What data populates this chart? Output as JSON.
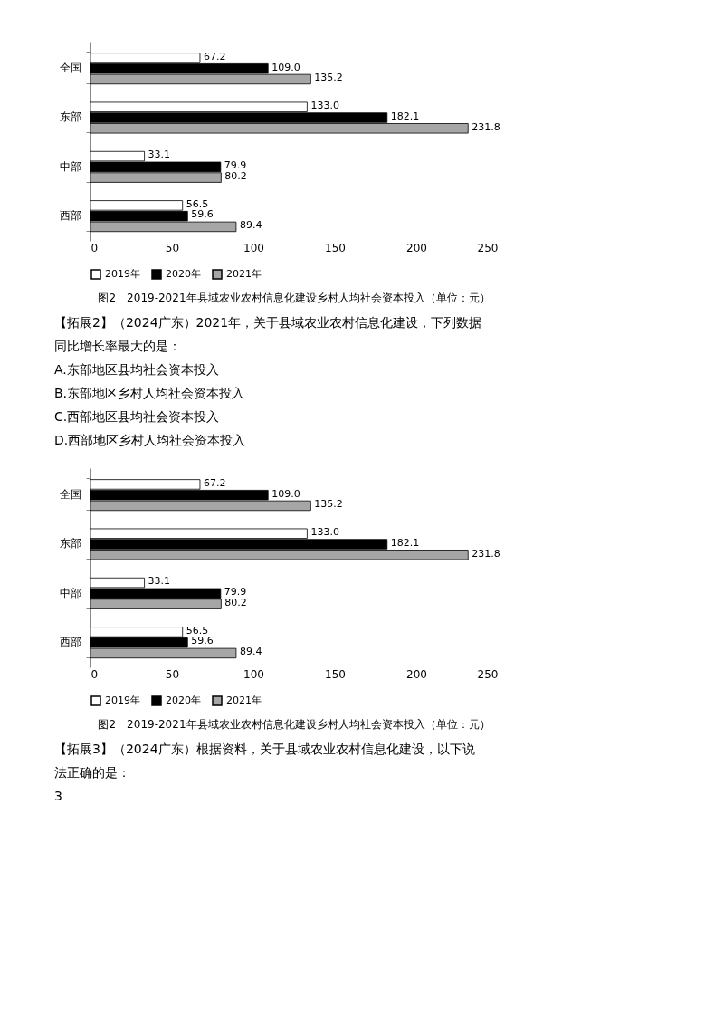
{
  "chart_data": [
    {
      "type": "bar",
      "orientation": "horizontal",
      "title": "图2　2019-2021年县域农业农村信息化建设乡村人均社会资本投入（单位：元）",
      "categories": [
        "全国",
        "东部",
        "中部",
        "西部"
      ],
      "series": [
        {
          "name": "2019年",
          "color": "#ffffff",
          "values": [
            67.2,
            133.0,
            33.1,
            56.5
          ]
        },
        {
          "name": "2020年",
          "color": "#000000",
          "values": [
            109.0,
            182.1,
            79.9,
            59.6
          ]
        },
        {
          "name": "2021年",
          "color": "#a6a6a6",
          "values": [
            135.2,
            231.8,
            80.2,
            89.4
          ]
        }
      ],
      "value_labels": [
        [
          "67.2",
          "133.0",
          "33.1",
          "56.5"
        ],
        [
          "109.0",
          "182.1",
          "79.9",
          "59.6"
        ],
        [
          "135.2",
          "231.8",
          "80.2",
          "89.4"
        ]
      ],
      "xlim": [
        0,
        250
      ],
      "xticks": [
        0,
        50,
        100,
        150,
        200,
        250
      ],
      "grid": false,
      "legend": "bottom",
      "annotations": [
        "【拓展2】（2024广东）2021年，关于县域农业农村信息化建设，下列数据",
        "同比增长率最大的是：",
        "A.东部地区县均社会资本投入",
        "B.东部地区乡村人均社会资本投入",
        "C.西部地区县均社会资本投入",
        "D.西部地区乡村人均社会资本投入"
      ]
    },
    {
      "type": "bar",
      "orientation": "horizontal",
      "title": "图2　2019-2021年县域农业农村信息化建设乡村人均社会资本投入（单位：元）",
      "categories": [
        "全国",
        "东部",
        "中部",
        "西部"
      ],
      "series": [
        {
          "name": "2019年",
          "color": "#ffffff",
          "values": [
            67.2,
            133.0,
            33.1,
            56.5
          ]
        },
        {
          "name": "2020年",
          "color": "#000000",
          "values": [
            109.0,
            182.1,
            79.9,
            59.6
          ]
        },
        {
          "name": "2021年",
          "color": "#a6a6a6",
          "values": [
            135.2,
            231.8,
            80.2,
            89.4
          ]
        }
      ],
      "value_labels": [
        [
          "67.2",
          "133.0",
          "33.1",
          "56.5"
        ],
        [
          "109.0",
          "182.1",
          "79.9",
          "59.6"
        ],
        [
          "135.2",
          "231.8",
          "80.2",
          "89.4"
        ]
      ],
      "xlim": [
        0,
        250
      ],
      "xticks": [
        0,
        50,
        100,
        150,
        200,
        250
      ],
      "grid": false,
      "legend": "bottom",
      "annotations": [
        "【拓展3】（2024广东）根据资料，关于县域农业农村信息化建设，以下说",
        "法正确的是：",
        "3"
      ]
    }
  ]
}
